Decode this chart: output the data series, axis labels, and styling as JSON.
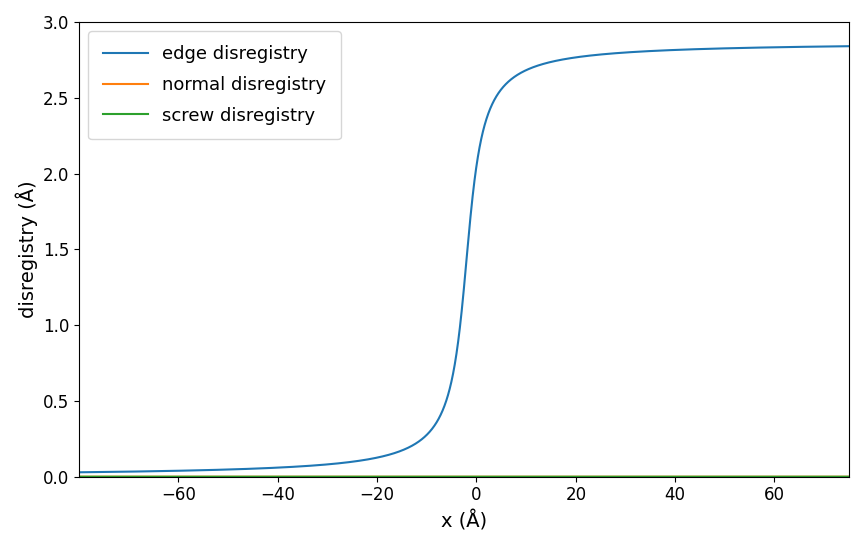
{
  "title": "",
  "xlabel": "x (Å)",
  "ylabel": "disregistry (Å)",
  "xlim": [
    -80,
    75
  ],
  "ylim": [
    0,
    3.0
  ],
  "yticks": [
    0.0,
    0.5,
    1.0,
    1.5,
    2.0,
    2.5,
    3.0
  ],
  "xticks": [
    -60,
    -40,
    -20,
    0,
    20,
    40,
    60
  ],
  "edge_color": "#1f77b4",
  "normal_color": "#ff7f0e",
  "screw_color": "#2ca02c",
  "edge_label": "edge disregistry",
  "normal_label": "normal disregistry",
  "screw_label": "screw disregistry",
  "b_edge": 2.87,
  "zeta": 2.5,
  "x_center": -2.0,
  "figsize": [
    8.64,
    5.46
  ],
  "dpi": 100
}
